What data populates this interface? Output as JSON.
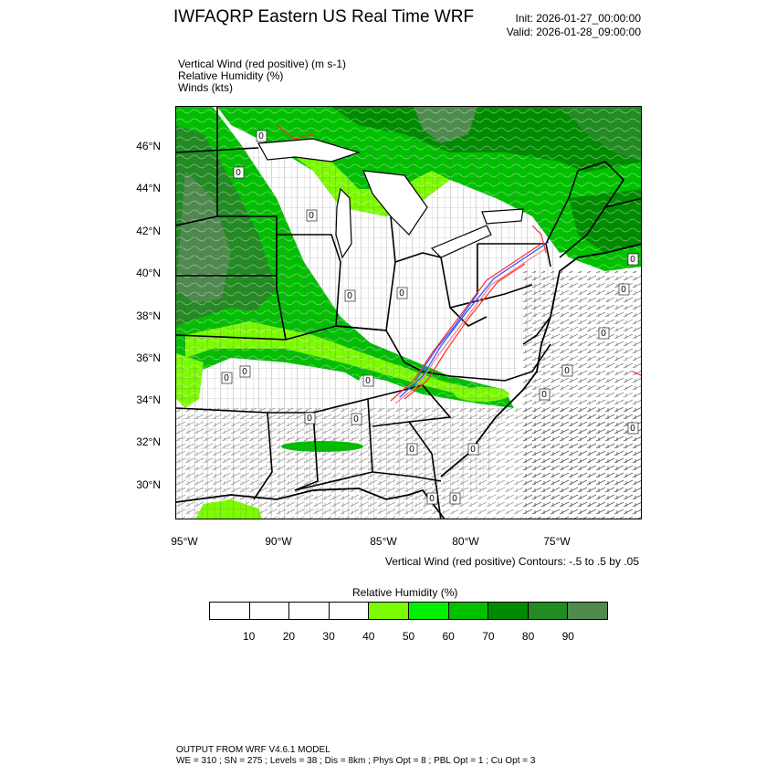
{
  "header": {
    "title": "IWFAQRP Eastern US Real Time WRF",
    "init": "Init: 2026-01-27_00:00:00",
    "valid": "Valid: 2026-01-28_09:00:00"
  },
  "fields": {
    "line1": "Vertical Wind (red positive)   (m s-1)",
    "line2": "Relative Humidity   (%)",
    "line3": "Winds   (kts)"
  },
  "map": {
    "lat_labels": [
      "46°N",
      "44°N",
      "42°N",
      "40°N",
      "38°N",
      "36°N",
      "34°N",
      "32°N",
      "30°N"
    ],
    "lon_labels": [
      "95°W",
      "90°W",
      "85°W",
      "80°W",
      "75°W"
    ],
    "zero_labels": [
      "0",
      "0",
      "0",
      "0",
      "0",
      "0",
      "0",
      "0",
      "0",
      "0",
      "0",
      "0",
      "0",
      "0",
      "0",
      "0",
      "0",
      "0",
      "0",
      "0"
    ],
    "colors": {
      "updraft": "#ff3030",
      "downdraft": "#3050ff",
      "barbs": "#000000",
      "borders": "#000000"
    }
  },
  "contours_note": "Vertical Wind (red positive) Contours: -.5 to .5 by .05",
  "colorbar": {
    "title": "Relative Humidity  (%)",
    "labels": [
      "10",
      "20",
      "30",
      "40",
      "50",
      "60",
      "70",
      "80",
      "90"
    ],
    "colors": [
      "#ffffff",
      "#ffffff",
      "#ffffff",
      "#ffffff",
      "#7cfc00",
      "#00f000",
      "#00c000",
      "#008b00",
      "#228b22",
      "#4f8a4f"
    ]
  },
  "footer": {
    "line1": "OUTPUT FROM WRF V4.6.1 MODEL",
    "line2": "WE = 310 ; SN = 275 ; Levels = 38 ; Dis = 8km ; Phys Opt = 8 ; PBL Opt = 1 ; Cu Opt = 3"
  }
}
